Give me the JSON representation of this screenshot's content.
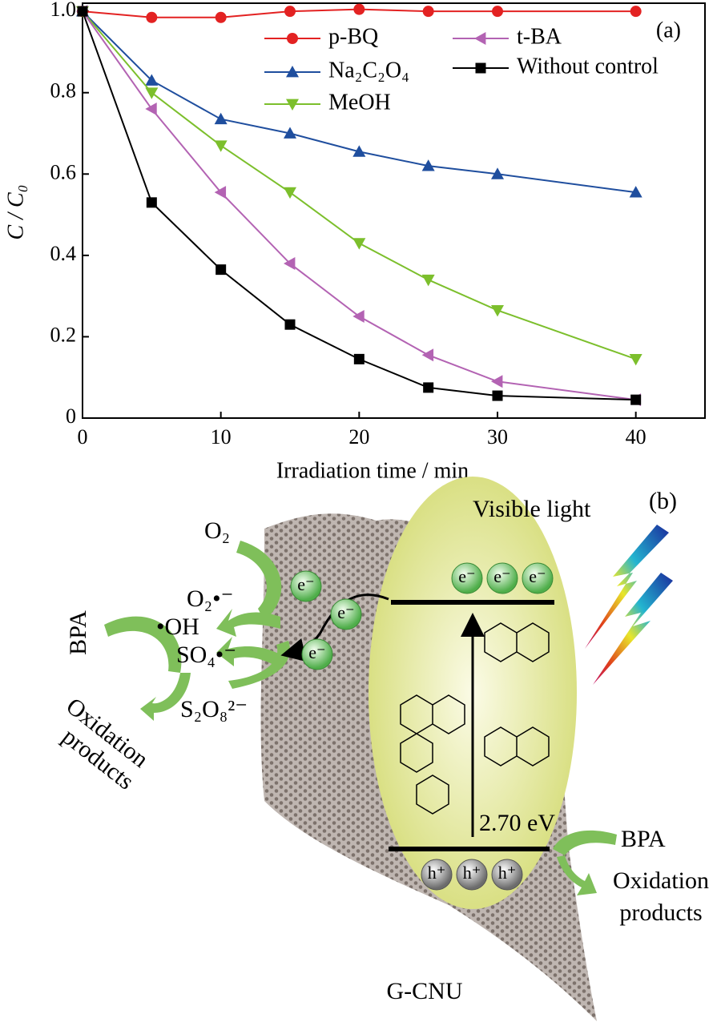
{
  "chart_data": {
    "type": "line",
    "annotation": "(a)",
    "x_label": "Irradiation time / min",
    "y_label": "C / C₀",
    "x": [
      0,
      5,
      10,
      15,
      20,
      25,
      30,
      40
    ],
    "series": [
      {
        "name": "p-BQ",
        "color": "#e32222",
        "marker": "circle",
        "values": [
          1.0,
          0.985,
          0.985,
          1.0,
          1.005,
          1.0,
          1.0,
          1.0
        ]
      },
      {
        "name": "Na₂C₂O₄",
        "color": "#1f4e9e",
        "marker": "triangle-up",
        "values": [
          1.0,
          0.83,
          0.735,
          0.7,
          0.655,
          0.62,
          0.6,
          0.555
        ]
      },
      {
        "name": "MeOH",
        "color": "#7cbf2c",
        "marker": "triangle-down",
        "values": [
          1.0,
          0.8,
          0.67,
          0.555,
          0.43,
          0.34,
          0.265,
          0.145
        ]
      },
      {
        "name": "t-BA",
        "color": "#b363b3",
        "marker": "triangle-left",
        "values": [
          1.0,
          0.76,
          0.555,
          0.38,
          0.25,
          0.155,
          0.09,
          0.045
        ]
      },
      {
        "name": "Without control",
        "color": "#000000",
        "marker": "square",
        "values": [
          1.0,
          0.53,
          0.365,
          0.23,
          0.145,
          0.075,
          0.055,
          0.045
        ]
      }
    ],
    "xlim": [
      0,
      45
    ],
    "xticks": [
      0,
      10,
      20,
      30,
      40
    ],
    "ylim": [
      0,
      1.02
    ],
    "yticks": [
      0,
      0.2,
      0.4,
      0.6,
      0.8,
      {
        "value": 1,
        "label": "1.0"
      }
    ],
    "legend": "upper right"
  },
  "diagram": {
    "label": "(b)",
    "light": "Visible light",
    "o2": "O₂",
    "superoxide": "O₂•⁻",
    "hydroxyl": "•OH",
    "sulfate": "SO₄•⁻",
    "persulfate": "S₂O₈²⁻",
    "bpa_left": "BPA",
    "products_left": [
      "Oxidation",
      "products"
    ],
    "electrons": [
      "e⁻",
      "e⁻",
      "e⁻",
      "e⁻",
      "e⁻",
      "e⁻"
    ],
    "holes": [
      "h⁺",
      "h⁺",
      "h⁺"
    ],
    "gap": "2.70 eV",
    "bpa_right": "BPA",
    "products_right": [
      "Oxidation",
      "products"
    ],
    "material": "G-CNU"
  }
}
